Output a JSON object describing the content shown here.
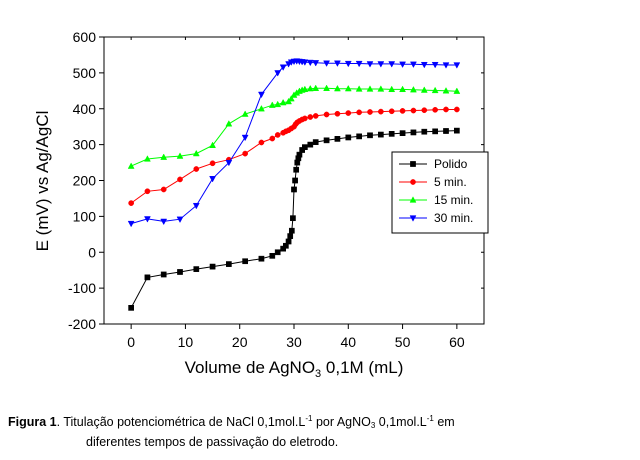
{
  "chart_data": {
    "type": "line",
    "title": "",
    "xlabel": {
      "prefix": "Volume de AgNO",
      "sub": "3",
      "suffix": " 0,1M (mL)"
    },
    "ylabel": "E (mV) vs Ag/AgCl",
    "xlim": [
      -5,
      65
    ],
    "ylim": [
      -200,
      600
    ],
    "xticks": [
      0,
      10,
      20,
      30,
      40,
      50,
      60
    ],
    "yticks": [
      -200,
      -100,
      0,
      100,
      200,
      300,
      400,
      500,
      600
    ],
    "grid": false,
    "legend_position": "right",
    "series": [
      {
        "name": "Polido",
        "color": "#000000",
        "marker": "square",
        "x": [
          0,
          3,
          6,
          9,
          12,
          15,
          18,
          21,
          24,
          26,
          27,
          28,
          28.5,
          29,
          29.3,
          29.6,
          29.8,
          30,
          30.2,
          30.4,
          30.6,
          30.8,
          31,
          31.5,
          32,
          33,
          34,
          36,
          38,
          40,
          42,
          44,
          46,
          48,
          50,
          52,
          54,
          56,
          58,
          60
        ],
        "y": [
          -155,
          -70,
          -62,
          -55,
          -47,
          -40,
          -33,
          -25,
          -18,
          -10,
          0,
          10,
          18,
          30,
          45,
          60,
          95,
          175,
          200,
          230,
          250,
          262,
          272,
          285,
          293,
          300,
          307,
          312,
          316,
          320,
          323,
          326,
          328,
          330,
          332,
          334,
          336,
          337,
          338,
          339
        ]
      },
      {
        "name": "5 min.",
        "color": "#ff0000",
        "marker": "circle",
        "x": [
          0,
          3,
          6,
          9,
          12,
          15,
          18,
          21,
          24,
          26,
          27,
          28,
          28.5,
          29,
          29.5,
          30,
          30.3,
          30.6,
          31,
          31.5,
          32,
          33,
          34,
          36,
          38,
          40,
          42,
          44,
          46,
          48,
          50,
          52,
          54,
          56,
          58,
          60
        ],
        "y": [
          137,
          170,
          175,
          203,
          232,
          248,
          258,
          275,
          306,
          317,
          327,
          333,
          337,
          340,
          345,
          350,
          357,
          362,
          366,
          370,
          373,
          377,
          380,
          384,
          386,
          388,
          390,
          391,
          392,
          393,
          394,
          395,
          396,
          397,
          398,
          398
        ]
      },
      {
        "name": "15 min.",
        "color": "#00ff00",
        "marker": "triangle-up",
        "x": [
          0,
          3,
          6,
          9,
          12,
          15,
          18,
          21,
          24,
          26,
          27,
          28,
          29,
          29.5,
          30,
          30.5,
          31,
          31.5,
          32,
          33,
          34,
          36,
          38,
          40,
          42,
          44,
          46,
          48,
          50,
          52,
          54,
          56,
          58,
          60
        ],
        "y": [
          240,
          260,
          265,
          268,
          275,
          298,
          358,
          385,
          400,
          410,
          412,
          417,
          420,
          428,
          438,
          444,
          449,
          452,
          454,
          456,
          457,
          457,
          456,
          456,
          455,
          455,
          455,
          454,
          454,
          453,
          452,
          451,
          450,
          449
        ]
      },
      {
        "name": "30 min.",
        "color": "#0000ff",
        "marker": "triangle-down",
        "x": [
          0,
          3,
          6,
          9,
          12,
          15,
          18,
          21,
          24,
          27,
          28,
          29,
          29.5,
          30,
          30.5,
          31,
          31.5,
          32,
          33,
          34,
          36,
          38,
          40,
          42,
          44,
          46,
          48,
          50,
          52,
          54,
          56,
          58,
          60
        ],
        "y": [
          80,
          93,
          86,
          92,
          130,
          205,
          250,
          320,
          440,
          500,
          516,
          525,
          530,
          532,
          533,
          532,
          531,
          530,
          529,
          528,
          527,
          527,
          526,
          526,
          525,
          525,
          525,
          524,
          524,
          523,
          523,
          522,
          522
        ]
      }
    ]
  },
  "caption": {
    "label": "Figura 1",
    "part1": ". Titulação potenciométrica de NaCl 0,1mol.L",
    "sup1": "-1",
    "part2": " por AgNO",
    "sub1": "3",
    "part3": " 0,1mol.L",
    "sup2": "-1",
    "part4": " em",
    "line2": "diferentes tempos de passivação do eletrodo."
  }
}
